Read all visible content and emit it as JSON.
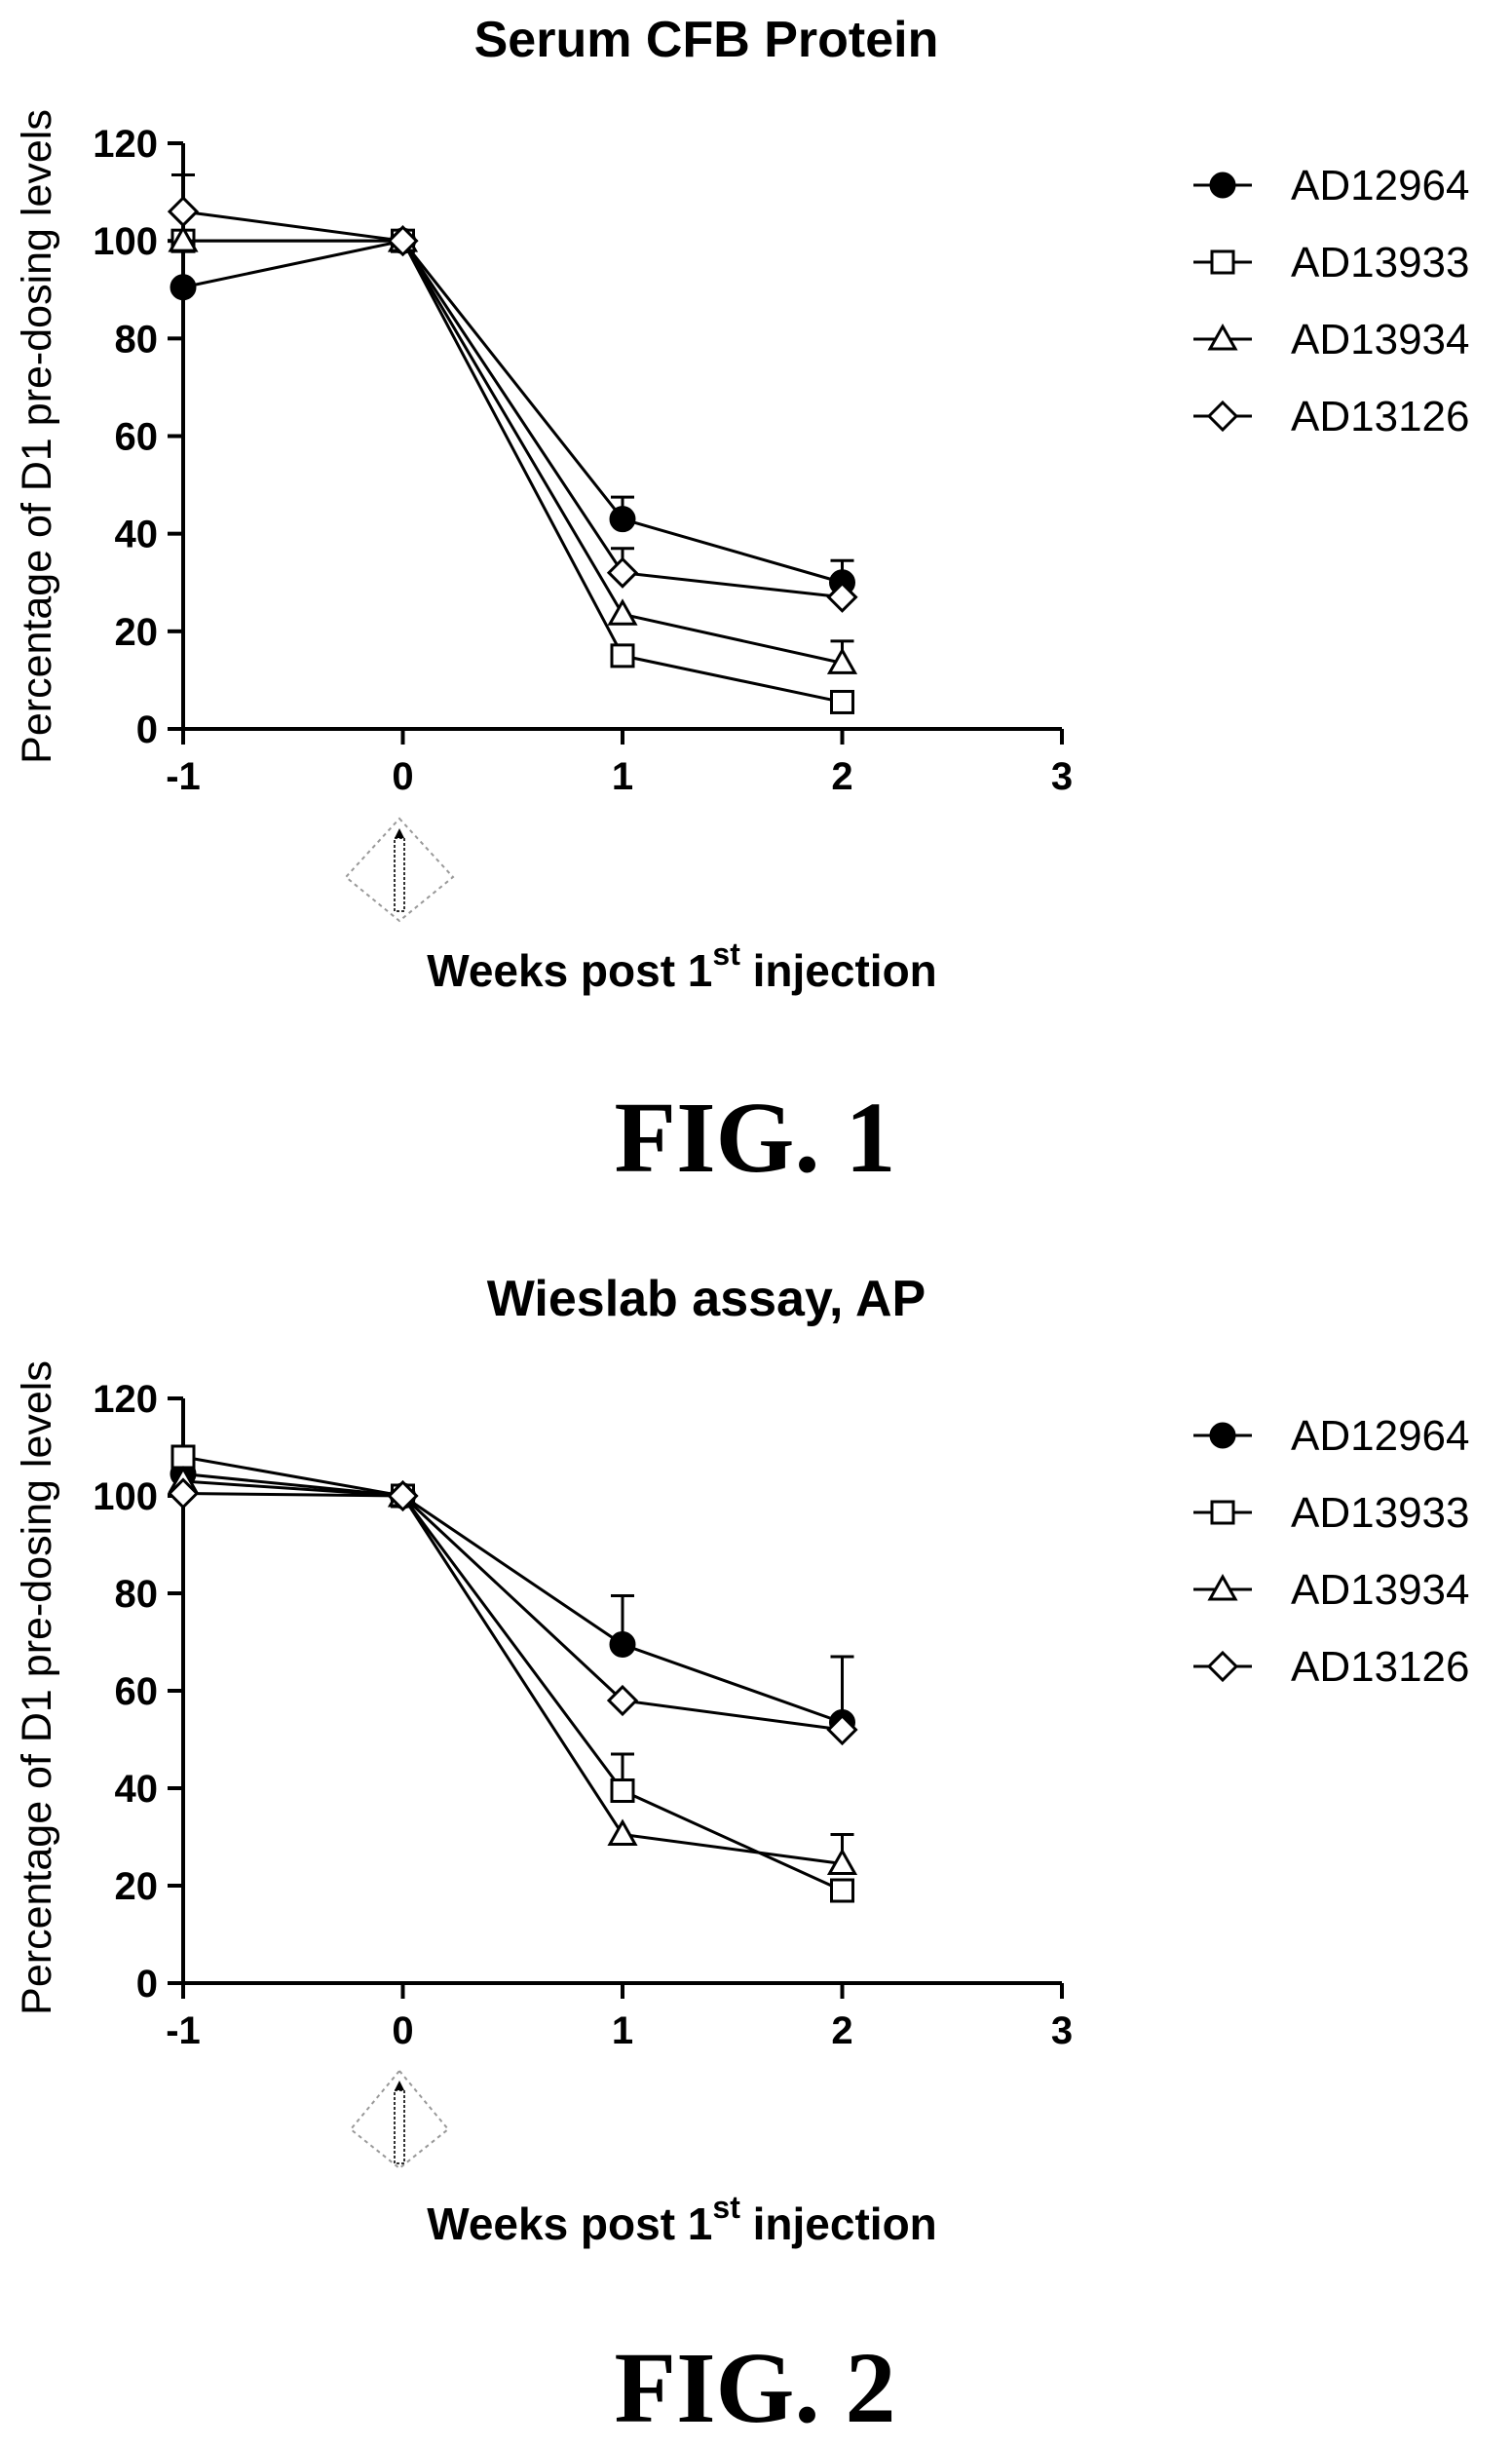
{
  "chart_data": [
    {
      "type": "line",
      "title": "Serum CFB Protein",
      "xlabel_main": "Weeks post 1",
      "xlabel_sup": "st",
      "xlabel_end": " injection",
      "ylabel": "Percentage of D1 pre-dosing levels",
      "xlim": [
        -1,
        3
      ],
      "ylim": [
        0,
        120
      ],
      "xticks": [
        -1,
        0,
        1,
        2,
        3
      ],
      "yticks": [
        0,
        20,
        40,
        60,
        80,
        100,
        120
      ],
      "x": [
        -1,
        0,
        1,
        2
      ],
      "legend_position": "right",
      "series": [
        {
          "name": "AD12964",
          "marker": "filled-circle",
          "values": [
            90.5,
            100,
            43,
            30
          ],
          "error": [
            0,
            0,
            4.5,
            4.5
          ]
        },
        {
          "name": "AD13933",
          "marker": "open-square",
          "values": [
            100,
            100,
            15,
            5.5
          ],
          "error": [
            0,
            0,
            0,
            0
          ]
        },
        {
          "name": "AD13934",
          "marker": "open-triangle",
          "values": [
            100,
            100,
            23.5,
            13.5
          ],
          "error": [
            0,
            0,
            0,
            4.5
          ]
        },
        {
          "name": "AD13126",
          "marker": "open-diamond",
          "values": [
            106,
            100,
            32,
            27
          ],
          "error": [
            7.5,
            0,
            5,
            0
          ]
        }
      ],
      "figure_label": "FIG. 1"
    },
    {
      "type": "line",
      "title": "Wieslab assay, AP",
      "xlabel_main": "Weeks post 1",
      "xlabel_sup": "st",
      "xlabel_end": " injection",
      "ylabel": "Percentage of D1 pre-dosing levels",
      "xlim": [
        -1,
        3
      ],
      "ylim": [
        0,
        120
      ],
      "xticks": [
        -1,
        0,
        1,
        2,
        3
      ],
      "yticks": [
        0,
        20,
        40,
        60,
        80,
        100,
        120
      ],
      "x": [
        -1,
        0,
        1,
        2
      ],
      "legend_position": "right",
      "series": [
        {
          "name": "AD12964",
          "marker": "filled-circle",
          "values": [
            104.5,
            100,
            69.5,
            53.5
          ],
          "error": [
            0,
            0,
            10,
            13.5
          ]
        },
        {
          "name": "AD13933",
          "marker": "open-square",
          "values": [
            108,
            100,
            39.5,
            19
          ],
          "error": [
            0,
            0,
            7.5,
            0
          ]
        },
        {
          "name": "AD13934",
          "marker": "open-triangle",
          "values": [
            103,
            100,
            30.5,
            24.5
          ],
          "error": [
            0,
            0,
            0,
            6
          ]
        },
        {
          "name": "AD13126",
          "marker": "open-diamond",
          "values": [
            100.5,
            100,
            58,
            52
          ],
          "error": [
            0,
            0,
            0,
            0
          ]
        }
      ],
      "figure_label": "FIG. 2"
    }
  ]
}
